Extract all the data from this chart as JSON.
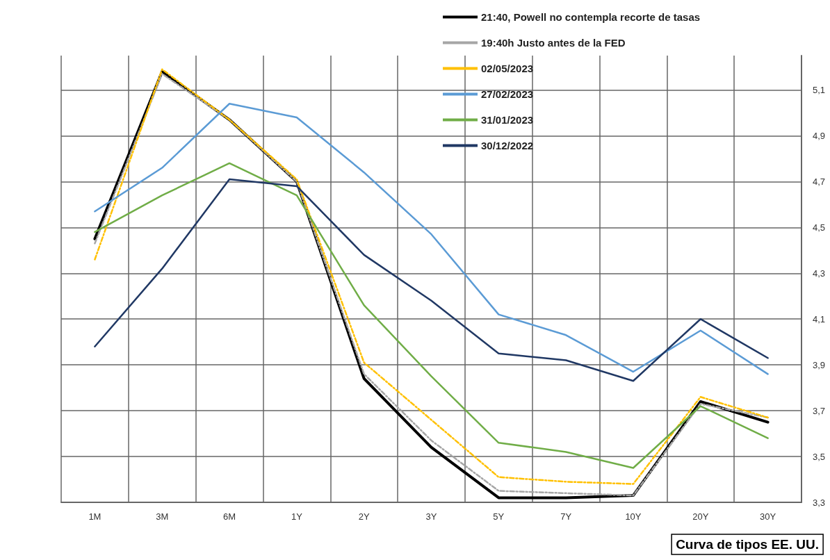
{
  "chart_data": {
    "type": "line",
    "title": "Curva de tipos EE. UU.",
    "categories": [
      "1M",
      "3M",
      "6M",
      "1Y",
      "2Y",
      "3Y",
      "5Y",
      "7Y",
      "10Y",
      "20Y",
      "30Y"
    ],
    "series": [
      {
        "name": "21:40, Powell no contempla recorte de tasas",
        "color": "#000000",
        "line_style": "solid",
        "values": [
          4.45,
          5.18,
          4.97,
          4.7,
          3.84,
          3.54,
          3.32,
          3.32,
          3.33,
          3.74,
          3.65
        ]
      },
      {
        "name": "19:40h Justo antes de la FED",
        "color": "#a6a6a6",
        "line_style": "dashed",
        "values": [
          4.43,
          5.17,
          4.97,
          4.7,
          3.86,
          3.57,
          3.35,
          3.34,
          3.33,
          3.73,
          3.67
        ]
      },
      {
        "name": "02/05/2023",
        "color": "#ffc000",
        "line_style": "dashed",
        "values": [
          4.36,
          5.19,
          4.97,
          4.71,
          3.91,
          3.66,
          3.41,
          3.39,
          3.38,
          3.76,
          3.67
        ]
      },
      {
        "name": "27/02/2023",
        "color": "#5b9bd5",
        "line_style": "solid",
        "values": [
          4.57,
          4.76,
          5.04,
          4.98,
          4.74,
          4.47,
          4.12,
          4.03,
          3.87,
          4.05,
          3.86
        ]
      },
      {
        "name": "31/01/2023",
        "color": "#70ad47",
        "line_style": "solid",
        "values": [
          4.48,
          4.64,
          4.78,
          4.64,
          4.16,
          3.85,
          3.56,
          3.52,
          3.45,
          3.72,
          3.58
        ]
      },
      {
        "name": "30/12/2022",
        "color": "#203864",
        "line_style": "solid",
        "values": [
          3.98,
          4.32,
          4.71,
          4.68,
          4.38,
          4.18,
          3.95,
          3.92,
          3.83,
          4.1,
          3.93
        ]
      }
    ],
    "ylim": [
      3.3,
      5.25
    ],
    "yticks": [
      {
        "value": 3.3,
        "label": "3,3"
      },
      {
        "value": 3.5,
        "label": "3,5"
      },
      {
        "value": 3.7,
        "label": "3,7"
      },
      {
        "value": 3.9,
        "label": "3,9"
      },
      {
        "value": 4.1,
        "label": "4,1"
      },
      {
        "value": 4.3,
        "label": "4,3"
      },
      {
        "value": 4.5,
        "label": "4,5"
      },
      {
        "value": 4.7,
        "label": "4,7"
      },
      {
        "value": 4.9,
        "label": "4,9"
      },
      {
        "value": 5.1,
        "label": "5,1"
      }
    ],
    "grid": true,
    "legend": "top right",
    "marker": "none"
  }
}
